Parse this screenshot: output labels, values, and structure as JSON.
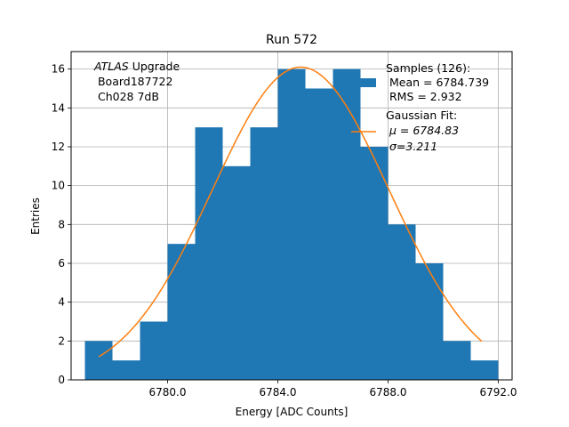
{
  "chart_data": {
    "type": "bar",
    "title": "Run 572",
    "xlabel": "Energy [ADC Counts]",
    "ylabel": "Entries",
    "xlim": [
      6776.5,
      6792.5
    ],
    "ylim": [
      0,
      16.9
    ],
    "xticks": [
      6780.0,
      6784.0,
      6788.0,
      6792.0
    ],
    "xtick_labels": [
      "6780.0",
      "6784.0",
      "6788.0",
      "6792.0"
    ],
    "yticks": [
      0,
      2,
      4,
      6,
      8,
      10,
      12,
      14,
      16
    ],
    "ytick_labels": [
      "0",
      "2",
      "4",
      "6",
      "8",
      "10",
      "12",
      "14",
      "16"
    ],
    "grid": true,
    "bin_edges": [
      6777,
      6778,
      6779,
      6780,
      6781,
      6782,
      6783,
      6784,
      6785,
      6786,
      6787,
      6788,
      6789,
      6790,
      6791,
      6792
    ],
    "values": [
      2,
      1,
      3,
      7,
      13,
      11,
      13,
      16,
      15,
      16,
      12,
      8,
      6,
      2,
      1
    ],
    "bar_color": "#1f77b4",
    "fit": {
      "name": "Gaussian Fit",
      "mu": 6784.83,
      "sigma": 3.211,
      "amplitude": 16.1,
      "x_range": [
        6777.5,
        6791.4
      ],
      "color": "#ff7f0e"
    },
    "annotation": {
      "line1_italic": "ATLAS",
      "line1_rest": " Upgrade",
      "line2": " Board187722",
      "line3": " Ch028 7dB"
    },
    "legend": {
      "position": "top-right",
      "samples_title": "Samples (126):",
      "samples_mean": " Mean = 6784.739",
      "samples_rms": " RMS = 2.932",
      "fit_title": "Gaussian Fit:",
      "fit_mu": " μ = 6784.83",
      "fit_sigma": " σ=3.211"
    }
  }
}
